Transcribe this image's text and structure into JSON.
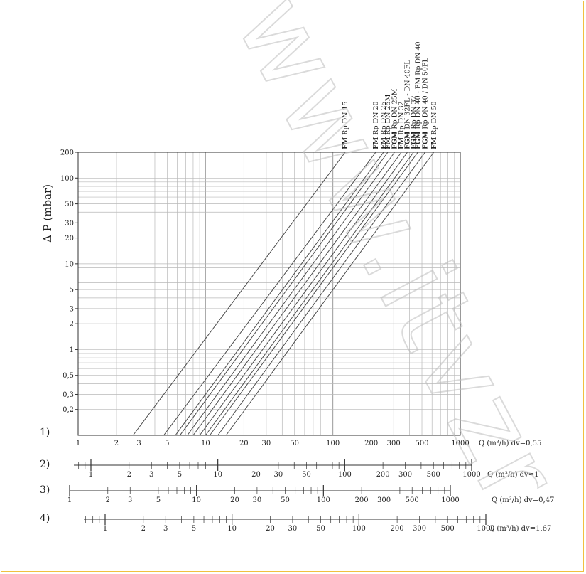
{
  "colors": {
    "frame": "#f0c040",
    "grid": "#b8b8b8",
    "axis": "#333333",
    "curve": "#4a4a4a"
  },
  "watermark": "www.itvzr",
  "chart_data": {
    "type": "line",
    "title": "",
    "ylabel": "Δ P (mbar)",
    "xscale": "log",
    "yscale": "log",
    "xlim": [
      1,
      1000
    ],
    "ylim": [
      0.1,
      200
    ],
    "grid": true,
    "y_tick_labels": [
      {
        "v": 200,
        "t": "200"
      },
      {
        "v": 100,
        "t": "100"
      },
      {
        "v": 50,
        "t": "50"
      },
      {
        "v": 30,
        "t": "30"
      },
      {
        "v": 20,
        "t": "20"
      },
      {
        "v": 10,
        "t": "10"
      },
      {
        "v": 5,
        "t": "5"
      },
      {
        "v": 3,
        "t": "3"
      },
      {
        "v": 2,
        "t": "2"
      },
      {
        "v": 1,
        "t": "1"
      },
      {
        "v": 0.5,
        "t": "0,5"
      },
      {
        "v": 0.3,
        "t": "0,3"
      },
      {
        "v": 0.2,
        "t": "0,2"
      }
    ],
    "x_tick_labels": [
      {
        "v": 1,
        "t": "1"
      },
      {
        "v": 2,
        "t": "2"
      },
      {
        "v": 3,
        "t": "3"
      },
      {
        "v": 5,
        "t": "5"
      },
      {
        "v": 10,
        "t": "10"
      },
      {
        "v": 20,
        "t": "20"
      },
      {
        "v": 30,
        "t": "30"
      },
      {
        "v": 50,
        "t": "50"
      },
      {
        "v": 100,
        "t": "100"
      },
      {
        "v": 200,
        "t": "200"
      },
      {
        "v": 300,
        "t": "300"
      },
      {
        "v": 500,
        "t": "500"
      },
      {
        "v": 1000,
        "t": "1000"
      }
    ],
    "series": [
      {
        "name": "FM Rp DN 15",
        "bold": "FM",
        "rest": " Rp DN 15",
        "x": [
          2.7,
          125
        ],
        "y": [
          0.1,
          200
        ]
      },
      {
        "name": "FM Rp DN 20",
        "bold": "FM",
        "rest": " Rp DN 20",
        "x": [
          4.7,
          217
        ],
        "y": [
          0.1,
          200
        ]
      },
      {
        "name": "FM Rp DN 25",
        "bold": "FM",
        "rest": " Rp DN 25",
        "x": [
          5.8,
          250
        ],
        "y": [
          0.1,
          200
        ]
      },
      {
        "name": "FM Rp DN 25M",
        "bold": "FM",
        "rest": " Rp DN 25M",
        "x": [
          6.3,
          270
        ],
        "y": [
          0.1,
          200
        ]
      },
      {
        "name": "FGM Rp DN 25M",
        "bold": "FGM",
        "rest": " Rp DN 25M",
        "x": [
          7.2,
          305
        ],
        "y": [
          0.1,
          200
        ]
      },
      {
        "name": "FM Rp DN 32",
        "bold": "FM",
        "rest": " Rp DN 32",
        "x": [
          8.0,
          345
        ],
        "y": [
          0.1,
          200
        ]
      },
      {
        "name": "FGM DN 32FL - DN 40FL",
        "bold": "FGM",
        "rest": " DN 32FL - DN 40FL",
        "x": [
          9.0,
          385
        ],
        "y": [
          0.1,
          200
        ]
      },
      {
        "name": "FGM Rp DN 32",
        "bold": "FGM",
        "rest": " Rp DN 32",
        "x": [
          10.0,
          430
        ],
        "y": [
          0.1,
          200
        ]
      },
      {
        "name": "FGM Rp DN 40 - FM Rp DN 40",
        "bold": "FGM",
        "rest": " Rp DN 40 - FM Rp DN 40",
        "x": [
          10.8,
          465
        ],
        "y": [
          0.1,
          200
        ]
      },
      {
        "name": "FGM Rp DN 40 / DN 50FL",
        "bold": "FGM",
        "rest": " Rp DN 40 / DN 50FL",
        "x": [
          12.5,
          530
        ],
        "y": [
          0.1,
          200
        ]
      },
      {
        "name": "FM Rp DN 50",
        "bold": "FM",
        "rest": " Rp DN 50",
        "x": [
          14.5,
          620
        ],
        "y": [
          0.1,
          200
        ]
      }
    ],
    "scales": [
      {
        "label": "1)",
        "caption": "Q (m³/h)  dv=0,55",
        "ticks": [
          "1",
          "2",
          "3",
          "5",
          "10",
          "20",
          "30",
          "50",
          "100",
          "200",
          "300",
          "500",
          "1000"
        ]
      },
      {
        "label": "2)",
        "caption": "Q (m³/h)  dv=1",
        "ticks": [
          "1",
          "2",
          "3",
          "5",
          "10",
          "20",
          "30",
          "50",
          "100",
          "200",
          "300",
          "500",
          "1000"
        ]
      },
      {
        "label": "3)",
        "caption": "Q (m³/h)  dv=0,47",
        "ticks": [
          "1",
          "2",
          "3",
          "5",
          "10",
          "20",
          "30",
          "50",
          "100",
          "200",
          "300",
          "500",
          "1000"
        ]
      },
      {
        "label": "4)",
        "caption": "Q (m³/h)  dv=1,67",
        "ticks": [
          "1",
          "2",
          "3",
          "5",
          "10",
          "20",
          "30",
          "50",
          "100",
          "200",
          "300",
          "500",
          "1000"
        ]
      }
    ]
  }
}
